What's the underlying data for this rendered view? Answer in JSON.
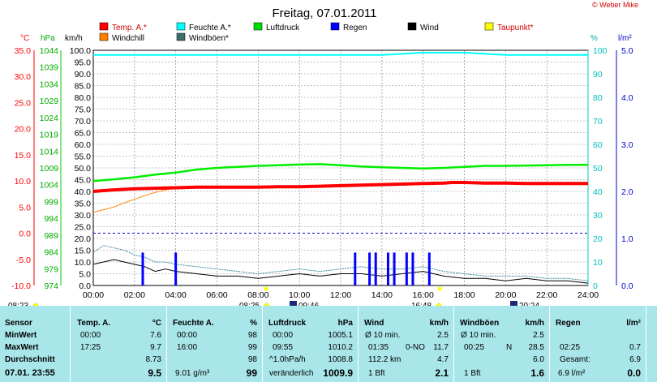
{
  "chart_data": {
    "type": "line",
    "title": "Freitag, 07.01.2011",
    "legend": [
      {
        "name": "Temp. A.*",
        "color": "#ff0000"
      },
      {
        "name": "Feuchte A.*",
        "color": "#00ffff"
      },
      {
        "name": "Luftdruck",
        "color": "#00dd00"
      },
      {
        "name": "Regen",
        "color": "#0000ff"
      },
      {
        "name": "Wind",
        "color": "#000000"
      },
      {
        "name": "Taupunkt*",
        "color": "#ffff00"
      },
      {
        "name": "Windchill",
        "color": "#ff8000"
      },
      {
        "name": "Windböen*",
        "color": "#3c6e6e"
      }
    ],
    "axis_units": {
      "temp": "°C",
      "pressure": "hPa",
      "wind": "km/h",
      "humidity": "%",
      "rain": "l/m²"
    },
    "temp_ticks": [
      "35.0",
      "30.0",
      "25.0",
      "20.0",
      "15.0",
      "10.0",
      "5.0",
      "0.0",
      "-5.0",
      "-10.0"
    ],
    "pressure_ticks": [
      "1044",
      "1039",
      "1034",
      "1029",
      "1024",
      "1019",
      "1014",
      "1009",
      "1004",
      "999",
      "994",
      "989",
      "984",
      "979",
      "974"
    ],
    "wind_ticks": [
      "100.0",
      "95.0",
      "90.0",
      "85.0",
      "80.0",
      "75.0",
      "70.0",
      "65.0",
      "60.0",
      "55.0",
      "50.0",
      "45.0",
      "40.0",
      "35.0",
      "30.0",
      "25.0",
      "20.0",
      "15.0",
      "10.0",
      "5.0",
      "0.0"
    ],
    "humidity_ticks": [
      "100",
      "90",
      "80",
      "70",
      "60",
      "50",
      "40",
      "30",
      "20",
      "10",
      "0"
    ],
    "rain_ticks": [
      "5.0",
      "4.0",
      "3.0",
      "2.0",
      "1.0",
      "0.0"
    ],
    "x_ticks": [
      "00:00",
      "02:00",
      "04:00",
      "06:00",
      "08:00",
      "10:00",
      "12:00",
      "14:00",
      "16:00",
      "18:00",
      "20:00",
      "22:00",
      "24:00"
    ],
    "xlim_hours": [
      0,
      24
    ],
    "temp_lim": [
      -10,
      35
    ],
    "wind_lim": [
      0,
      100
    ],
    "series": [
      {
        "name": "Temp. A.*",
        "unit": "°C",
        "x": [
          0,
          1,
          2,
          3,
          4,
          5,
          6,
          7,
          8,
          9,
          10,
          11,
          12,
          13,
          14,
          15,
          16,
          17,
          17.4,
          18,
          19,
          20,
          21,
          22,
          23,
          24
        ],
        "values": [
          8.0,
          8.3,
          8.5,
          8.6,
          8.7,
          8.8,
          8.8,
          8.8,
          8.8,
          8.9,
          8.9,
          9.0,
          9.1,
          9.2,
          9.3,
          9.4,
          9.5,
          9.6,
          9.7,
          9.7,
          9.6,
          9.6,
          9.5,
          9.5,
          9.5,
          9.5
        ]
      },
      {
        "name": "Windchill",
        "unit": "°C",
        "x": [
          0,
          0.5,
          1,
          1.5,
          2,
          2.5,
          3,
          3.5,
          4,
          5,
          6,
          8,
          10,
          12,
          14,
          16,
          18,
          20,
          22,
          24
        ],
        "values": [
          4.0,
          4.5,
          5.0,
          5.8,
          6.5,
          7.2,
          7.8,
          8.3,
          8.6,
          8.7,
          8.8,
          8.8,
          8.9,
          9.1,
          9.3,
          9.4,
          9.7,
          9.6,
          9.5,
          9.5
        ]
      },
      {
        "name": "Feuchte A.*",
        "unit": "%",
        "x": [
          0,
          4,
          8,
          12,
          14,
          16,
          18,
          20,
          22,
          24
        ],
        "values": [
          98,
          98,
          98,
          98,
          98,
          99,
          99,
          98,
          98,
          98
        ]
      },
      {
        "name": "Luftdruck",
        "unit": "hPa",
        "x": [
          0,
          1,
          2,
          3,
          4,
          5,
          6,
          7,
          8,
          9,
          10,
          11,
          12,
          13,
          14,
          15,
          16,
          17,
          18,
          19,
          20,
          21,
          22,
          23,
          24
        ],
        "values": [
          1005.1,
          1005.6,
          1006.2,
          1007.0,
          1007.6,
          1008.5,
          1009.0,
          1009.3,
          1009.6,
          1009.8,
          1010.0,
          1010.1,
          1009.8,
          1009.4,
          1009.2,
          1009.0,
          1008.8,
          1009.0,
          1009.3,
          1009.6,
          1009.6,
          1009.7,
          1009.8,
          1009.9,
          1009.9
        ]
      },
      {
        "name": "Wind",
        "unit": "km/h",
        "x": [
          0,
          0.5,
          1,
          1.5,
          2,
          2.5,
          3,
          3.5,
          4,
          5,
          6,
          7,
          8,
          9,
          10,
          11,
          12,
          13,
          14,
          15,
          16,
          17,
          18,
          19,
          20,
          21,
          22,
          23,
          24
        ],
        "values": [
          9,
          10,
          11,
          10,
          9,
          8,
          6,
          7,
          6,
          5,
          4,
          4,
          3,
          4,
          5,
          4,
          5,
          5,
          4,
          5,
          6,
          4,
          3,
          3,
          2,
          3,
          2,
          2,
          1
        ]
      },
      {
        "name": "Windböen*",
        "unit": "km/h",
        "x": [
          0,
          0.5,
          1,
          1.5,
          2,
          2.5,
          3,
          3.5,
          4,
          5,
          6,
          7,
          8,
          9,
          10,
          11,
          12,
          13,
          14,
          15,
          16,
          17,
          18,
          19,
          20,
          21,
          22,
          23,
          24
        ],
        "values": [
          14,
          17,
          16,
          15,
          13,
          12,
          10,
          10,
          9,
          8,
          7,
          6,
          5,
          6,
          7,
          6,
          7,
          8,
          7,
          7,
          8,
          6,
          5,
          4,
          4,
          4,
          3,
          3,
          2
        ]
      },
      {
        "name": "Regen",
        "unit": "l/m²",
        "type": "bar",
        "x": [
          2.4,
          4.0,
          12.7,
          13.4,
          13.7,
          14.3,
          14.6,
          15.2,
          15.5,
          16.3
        ],
        "values": [
          0.7,
          0.7,
          0.7,
          0.7,
          0.7,
          0.7,
          0.7,
          0.7,
          0.7,
          0.7
        ]
      }
    ],
    "zero_line_temp": 0.0,
    "time_markers": [
      {
        "label": "08:23",
        "kind": "sunrise-marker"
      },
      {
        "label": "08:25",
        "kind": "sunrise-marker"
      },
      {
        "label": "09:46",
        "kind": "moon-marker"
      },
      {
        "label": "16:48",
        "kind": "sunset-marker"
      },
      {
        "label": "20:24",
        "kind": "moon-marker"
      }
    ]
  },
  "copyright": "© Weber Mike",
  "stats": {
    "sensor": {
      "header": "Sensor",
      "rows": [
        "MinWert",
        "MaxWert",
        "Durchschnitt",
        "07.01. 23:55"
      ]
    },
    "temp": {
      "header": "Temp. A.",
      "unit": "°C",
      "rows": [
        [
          "00:00",
          "7.6"
        ],
        [
          "17:25",
          "9.7"
        ],
        [
          "",
          "8.73"
        ],
        [
          "",
          "9.5"
        ]
      ]
    },
    "feuchte": {
      "header": "Feuchte A.",
      "unit": "%",
      "rows": [
        [
          "00:00",
          "98"
        ],
        [
          "16:00",
          "99"
        ],
        [
          "",
          "98"
        ],
        [
          "9.01 g/m³",
          "99"
        ]
      ]
    },
    "luftdruck": {
      "header": "Luftdruck",
      "unit": "hPa",
      "rows": [
        [
          "00:00",
          "1005.1"
        ],
        [
          "09:55",
          "1010.2"
        ],
        [
          "^1.0hPa/h",
          "1008.8"
        ],
        [
          "veränderlich",
          "1009.9"
        ]
      ]
    },
    "wind": {
      "header": "Wind",
      "unit": "km/h",
      "rows": [
        [
          "Ø 10 min.",
          "",
          "2.5"
        ],
        [
          "01:35",
          "0-NO",
          "11.7"
        ],
        [
          "112.2 km",
          "",
          "4.7"
        ],
        [
          "1 Bft",
          "",
          "2.1"
        ]
      ]
    },
    "windboeen": {
      "header": "Windböen",
      "unit": "km/h",
      "rows": [
        [
          "Ø 10 min.",
          "",
          "2.5"
        ],
        [
          "00:25",
          "N",
          "28.5"
        ],
        [
          "",
          "",
          "6.0"
        ],
        [
          "1 Bft",
          "",
          "1.6"
        ]
      ]
    },
    "regen": {
      "header": "Regen",
      "unit": "l/m²",
      "rows": [
        [
          "",
          ""
        ],
        [
          "02:25",
          "0.7"
        ],
        [
          "Gesamt:",
          "6.9"
        ],
        [
          "6.9 l/m²",
          "0.0"
        ]
      ]
    }
  }
}
